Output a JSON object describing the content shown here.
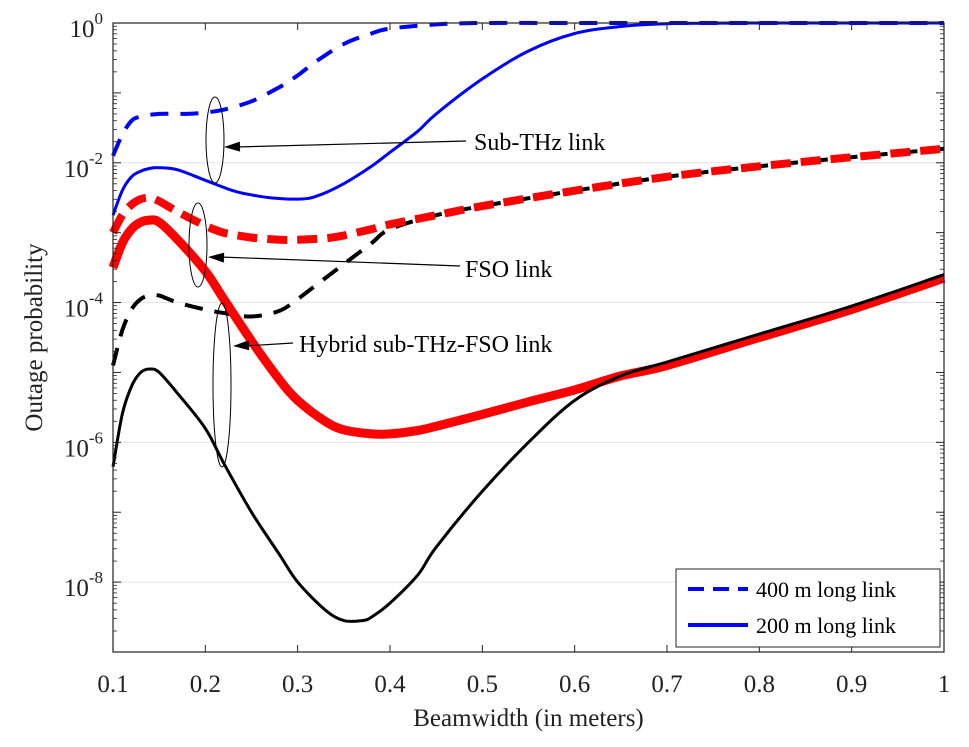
{
  "chart_data": {
    "type": "line",
    "title": "",
    "xlabel": "Beamwidth (in meters)",
    "ylabel": "Outage probability",
    "xlim": [
      0.1,
      1.0
    ],
    "ylim_log10": [
      -9,
      0
    ],
    "y_scale": "log",
    "grid": true,
    "x_ticks": [
      {
        "value": 0.1,
        "label": "0.1"
      },
      {
        "value": 0.2,
        "label": "0.2"
      },
      {
        "value": 0.3,
        "label": "0.3"
      },
      {
        "value": 0.4,
        "label": "0.4"
      },
      {
        "value": 0.5,
        "label": "0.5"
      },
      {
        "value": 0.6,
        "label": "0.6"
      },
      {
        "value": 0.7,
        "label": "0.7"
      },
      {
        "value": 0.8,
        "label": "0.8"
      },
      {
        "value": 0.9,
        "label": "0.9"
      },
      {
        "value": 1.0,
        "label": "1"
      }
    ],
    "y_ticks": [
      {
        "exp": 0,
        "base": "10",
        "sup": "0"
      },
      {
        "exp": -2,
        "base": "10",
        "sup": "-2"
      },
      {
        "exp": -4,
        "base": "10",
        "sup": "-4"
      },
      {
        "exp": -6,
        "base": "10",
        "sup": "-6"
      },
      {
        "exp": -8,
        "base": "10",
        "sup": "-8"
      }
    ],
    "series": [
      {
        "name": "Sub-THz link, 400 m",
        "color": "#0000ff",
        "style": "dashed",
        "weight": "normal",
        "x": [
          0.1,
          0.11,
          0.12,
          0.13,
          0.15,
          0.18,
          0.2,
          0.22,
          0.25,
          0.28,
          0.3,
          0.32,
          0.35,
          0.38,
          0.4,
          0.45,
          0.5,
          0.6,
          0.7,
          0.8,
          0.9,
          1.0
        ],
        "log10y": [
          -1.9,
          -1.6,
          -1.4,
          -1.34,
          -1.3,
          -1.3,
          -1.28,
          -1.24,
          -1.12,
          -0.92,
          -0.75,
          -0.55,
          -0.3,
          -0.15,
          -0.08,
          -0.02,
          0,
          0,
          0,
          0,
          0,
          0
        ]
      },
      {
        "name": "Sub-THz link, 200 m",
        "color": "#0000ff",
        "style": "solid",
        "weight": "normal",
        "x": [
          0.1,
          0.11,
          0.12,
          0.13,
          0.14,
          0.15,
          0.17,
          0.2,
          0.23,
          0.25,
          0.27,
          0.3,
          0.32,
          0.35,
          0.38,
          0.4,
          0.43,
          0.45,
          0.5,
          0.55,
          0.6,
          0.65,
          0.7,
          0.8,
          0.9,
          1.0
        ],
        "log10y": [
          -2.75,
          -2.4,
          -2.2,
          -2.12,
          -2.08,
          -2.07,
          -2.1,
          -2.25,
          -2.4,
          -2.46,
          -2.5,
          -2.52,
          -2.48,
          -2.3,
          -2.05,
          -1.85,
          -1.55,
          -1.3,
          -0.8,
          -0.4,
          -0.15,
          -0.05,
          -0.01,
          0,
          0,
          0
        ]
      },
      {
        "name": "FSO link, 400 m",
        "color": "#ff0000",
        "style": "dashed",
        "weight": "thick",
        "x": [
          0.1,
          0.11,
          0.12,
          0.13,
          0.14,
          0.15,
          0.17,
          0.2,
          0.22,
          0.25,
          0.28,
          0.3,
          0.33,
          0.35,
          0.38,
          0.4,
          0.45,
          0.5,
          0.6,
          0.7,
          0.8,
          0.9,
          1.0
        ],
        "log10y": [
          -3.0,
          -2.75,
          -2.6,
          -2.52,
          -2.5,
          -2.55,
          -2.7,
          -2.9,
          -3.0,
          -3.07,
          -3.1,
          -3.1,
          -3.08,
          -3.04,
          -2.95,
          -2.88,
          -2.75,
          -2.62,
          -2.4,
          -2.2,
          -2.05,
          -1.92,
          -1.8
        ]
      },
      {
        "name": "FSO link, 200 m",
        "color": "#ff0000",
        "style": "solid",
        "weight": "thick",
        "x": [
          0.1,
          0.11,
          0.12,
          0.13,
          0.14,
          0.15,
          0.17,
          0.2,
          0.22,
          0.25,
          0.28,
          0.3,
          0.33,
          0.35,
          0.38,
          0.4,
          0.43,
          0.45,
          0.5,
          0.55,
          0.6,
          0.65,
          0.7,
          0.8,
          0.9,
          1.0
        ],
        "log10y": [
          -3.5,
          -3.15,
          -2.95,
          -2.85,
          -2.82,
          -2.85,
          -3.1,
          -3.55,
          -3.95,
          -4.55,
          -5.1,
          -5.4,
          -5.7,
          -5.82,
          -5.88,
          -5.88,
          -5.83,
          -5.77,
          -5.6,
          -5.42,
          -5.25,
          -5.05,
          -4.9,
          -4.5,
          -4.1,
          -3.65
        ]
      },
      {
        "name": "Hybrid sub-THz-FSO link, 400 m",
        "color": "#000000",
        "style": "dashed",
        "weight": "normal",
        "x": [
          0.1,
          0.11,
          0.12,
          0.13,
          0.14,
          0.15,
          0.17,
          0.2,
          0.22,
          0.25,
          0.28,
          0.3,
          0.32,
          0.35,
          0.38,
          0.4,
          0.45,
          0.5,
          0.6,
          0.7,
          0.8,
          0.9,
          1.0
        ],
        "log10y": [
          -4.9,
          -4.4,
          -4.1,
          -3.95,
          -3.9,
          -3.9,
          -4.0,
          -4.1,
          -4.15,
          -4.2,
          -4.12,
          -3.95,
          -3.75,
          -3.45,
          -3.15,
          -2.95,
          -2.75,
          -2.62,
          -2.4,
          -2.2,
          -2.05,
          -1.92,
          -1.8
        ]
      },
      {
        "name": "Hybrid sub-THz-FSO link, 200 m",
        "color": "#000000",
        "style": "solid",
        "weight": "normal",
        "x": [
          0.1,
          0.11,
          0.12,
          0.13,
          0.14,
          0.15,
          0.17,
          0.2,
          0.22,
          0.25,
          0.28,
          0.3,
          0.33,
          0.35,
          0.37,
          0.38,
          0.4,
          0.43,
          0.45,
          0.5,
          0.55,
          0.6,
          0.65,
          0.7,
          0.8,
          0.9,
          1.0
        ],
        "log10y": [
          -6.35,
          -5.6,
          -5.2,
          -5.0,
          -4.95,
          -5.0,
          -5.3,
          -5.8,
          -6.3,
          -7.0,
          -7.6,
          -8.0,
          -8.4,
          -8.55,
          -8.55,
          -8.5,
          -8.3,
          -7.9,
          -7.5,
          -6.7,
          -6.0,
          -5.4,
          -5.05,
          -4.85,
          -4.45,
          -4.05,
          -3.6
        ]
      }
    ],
    "annotations": [
      {
        "text": "Sub-THz link",
        "x": 0.215,
        "log10y": -1.75
      },
      {
        "text": "FSO link",
        "x": 0.215,
        "log10y": -3.3
      },
      {
        "text": "Hybrid sub-THz-FSO link",
        "x": 0.225,
        "log10y": -4.65
      }
    ],
    "legend": {
      "location": "bottom-right",
      "entries": [
        {
          "label": "400 m long link",
          "style": "dashed",
          "color": "#0000ff"
        },
        {
          "label": "200 m long link",
          "style": "solid",
          "color": "#0000ff"
        }
      ]
    }
  }
}
